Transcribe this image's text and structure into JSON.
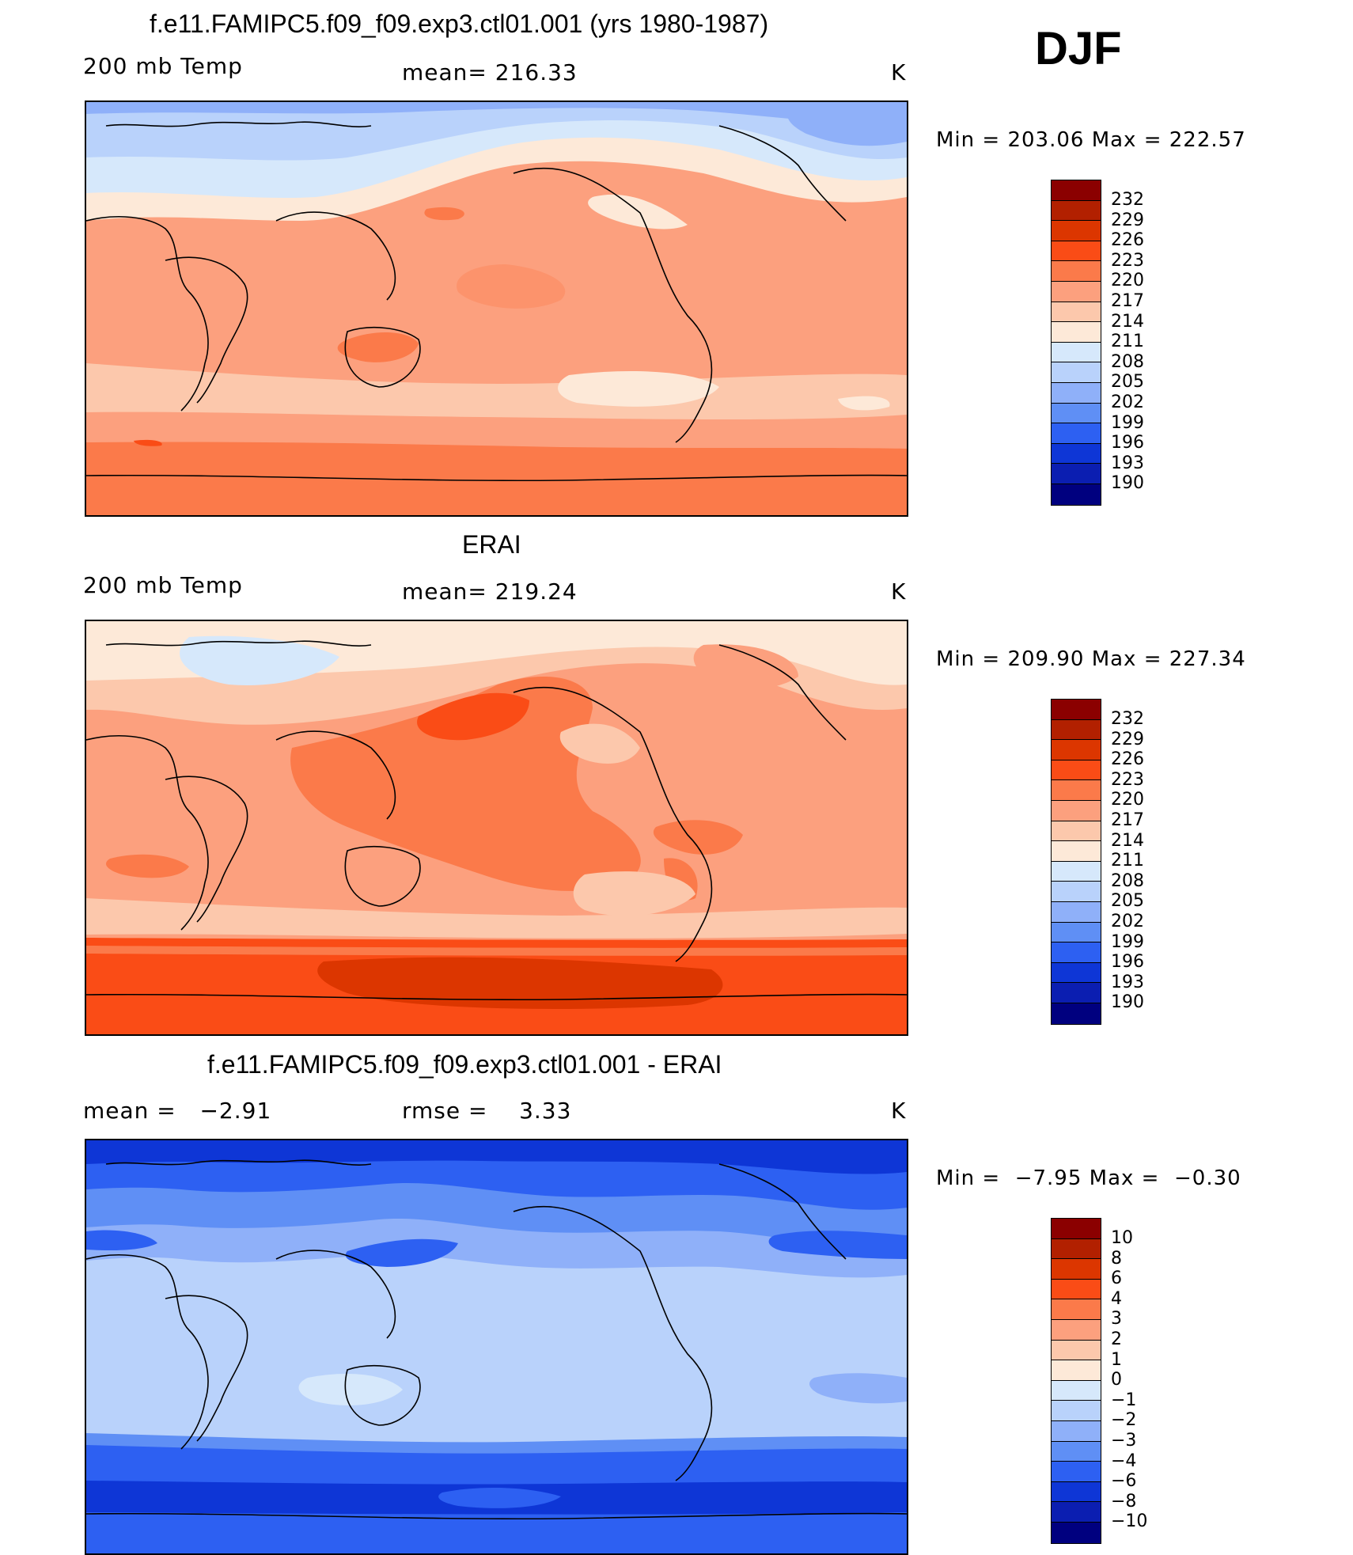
{
  "season": "DJF",
  "panels": [
    {
      "title": "f.e11.FAMIPC5.f09_f09.exp3.ctl01.001 (yrs 1980-1987)",
      "left_label": "200 mb Temp",
      "center_label": "mean= 216.33",
      "units": "K",
      "minmax": "Min = 203.06 Max = 222.57",
      "colorbar_labels": [
        "232",
        "229",
        "226",
        "223",
        "220",
        "217",
        "214",
        "211",
        "208",
        "205",
        "202",
        "199",
        "196",
        "193",
        "190"
      ]
    },
    {
      "title": "ERAI",
      "left_label": "200 mb Temp",
      "center_label": "mean= 219.24",
      "units": "K",
      "minmax": "Min = 209.90 Max = 227.34",
      "colorbar_labels": [
        "232",
        "229",
        "226",
        "223",
        "220",
        "217",
        "214",
        "211",
        "208",
        "205",
        "202",
        "199",
        "196",
        "193",
        "190"
      ]
    },
    {
      "title": "f.e11.FAMIPC5.f09_f09.exp3.ctl01.001 - ERAI",
      "left_label": "mean =   −2.91",
      "center_label": "rmse =    3.33",
      "units": "K",
      "minmax": "Min =  −7.95 Max =  −0.30",
      "colorbar_labels": [
        "10",
        "8",
        "6",
        "4",
        "3",
        "2",
        "1",
        "0",
        "−1",
        "−2",
        "−3",
        "−4",
        "−6",
        "−8",
        "−10"
      ]
    }
  ],
  "colors": {
    "abs_scale": [
      "#8b0000",
      "#b22000",
      "#dc3600",
      "#fa4c16",
      "#fb7a4a",
      "#fca07e",
      "#fcc8ac",
      "#fde9d8",
      "#d6e8fb",
      "#b9d2fb",
      "#8fb0f9",
      "#5f8ff5",
      "#2d60f2",
      "#0e36d6",
      "#0b1eb1",
      "#00007f"
    ],
    "diff_scale": [
      "#8b0000",
      "#b22000",
      "#dc3600",
      "#fa4c16",
      "#fb7a4a",
      "#fca07e",
      "#fcc8ac",
      "#fde9d8",
      "#d6e8fb",
      "#b9d2fb",
      "#8fb0f9",
      "#5f8ff5",
      "#2d60f2",
      "#0e36d6",
      "#0b1eb1",
      "#00007f"
    ]
  }
}
